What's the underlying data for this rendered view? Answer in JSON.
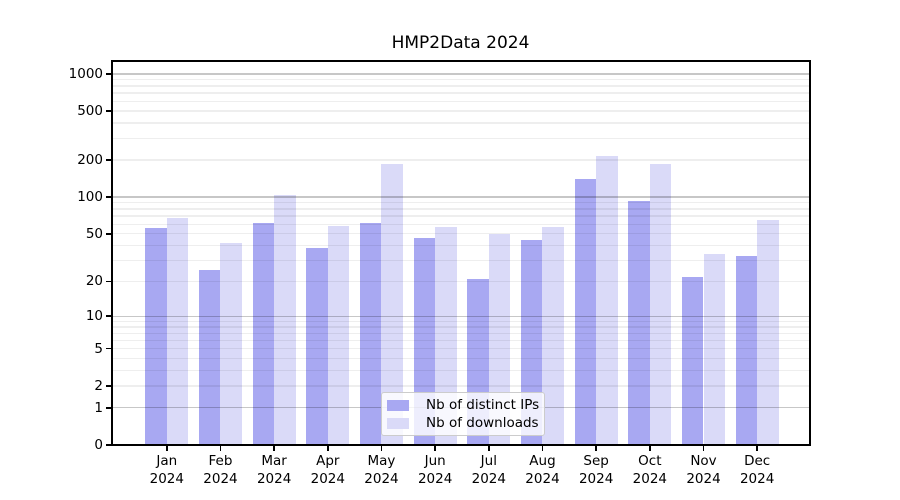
{
  "title": "HMP2Data 2024",
  "colors": {
    "bar_ips": "#a8a8f2",
    "bar_downloads": "#dadaf8",
    "grid_major": "rgba(0,0,0,0.22)",
    "grid_minor": "rgba(0,0,0,0.065)",
    "axis": "#000000",
    "text": "#000000",
    "legend_background": "rgba(255,255,255,0.8)",
    "legend_border": "#cccccc"
  },
  "legend": {
    "items": [
      {
        "label": "Nb of distinct IPs",
        "color_key": "bar_ips"
      },
      {
        "label": "Nb of downloads",
        "color_key": "bar_downloads"
      }
    ]
  },
  "chart_data": {
    "type": "bar",
    "title": "HMP2Data 2024",
    "categories": [
      "Jan 2024",
      "Feb 2024",
      "Mar 2024",
      "Apr 2024",
      "May 2024",
      "Jun 2024",
      "Jul 2024",
      "Aug 2024",
      "Sep 2024",
      "Oct 2024",
      "Nov 2024",
      "Dec 2024"
    ],
    "series": [
      {
        "name": "Nb of distinct IPs",
        "key": "distinct-ips",
        "color_key": "bar_ips",
        "values": [
          56,
          25,
          61,
          38,
          61,
          46,
          21,
          44,
          141,
          93,
          22,
          33
        ]
      },
      {
        "name": "Nb of downloads",
        "key": "downloads",
        "color_key": "bar_downloads",
        "values": [
          67,
          42,
          103,
          58,
          187,
          57,
          50,
          57,
          215,
          185,
          34,
          65
        ]
      }
    ],
    "xlabel": "",
    "ylabel": "",
    "yscale": "log1p (symlog-like: linear at 0, logarithmic above)",
    "yticks": [
      0,
      1,
      2,
      5,
      10,
      20,
      50,
      100,
      200,
      500,
      1000
    ],
    "ylim": [
      0,
      1280
    ],
    "grid": "horizontal; major lines at 1,10,100,1000; faint minor lines at 2-9 multiples",
    "legend_position": "lower center inside plot"
  }
}
